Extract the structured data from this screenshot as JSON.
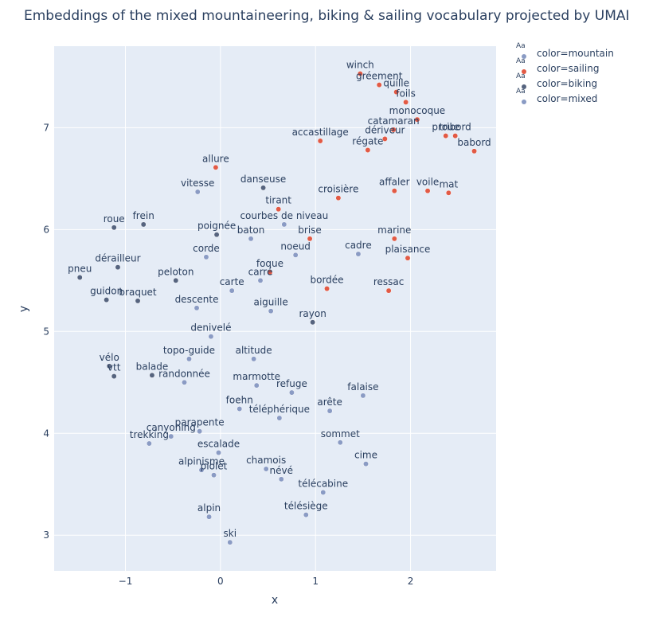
{
  "chart_data": {
    "type": "scatter",
    "title": "Embeddings of the mixed mountaineering, biking & sailing vocabulary projected by UMAI",
    "xlabel": "x",
    "ylabel": "y",
    "xlim": [
      -1.75,
      2.9
    ],
    "ylim": [
      2.65,
      7.8
    ],
    "xticks": [
      -1,
      0,
      1,
      2
    ],
    "xtick_labels": [
      "−1",
      "0",
      "1",
      "2"
    ],
    "yticks": [
      3,
      4,
      5,
      6,
      7
    ],
    "ytick_labels": [
      "3",
      "4",
      "5",
      "6",
      "7"
    ],
    "grid": true,
    "legend_position": "right",
    "series": [
      {
        "name": "color=mountain",
        "color": "#8a9bc4",
        "points": [
          {
            "label": "vitesse",
            "x": -0.24,
            "y": 6.37
          },
          {
            "label": "corde",
            "x": -0.15,
            "y": 5.73
          },
          {
            "label": "carte",
            "x": 0.12,
            "y": 5.4
          },
          {
            "label": "descente",
            "x": -0.25,
            "y": 5.23
          },
          {
            "label": "aiguille",
            "x": 0.53,
            "y": 5.2
          },
          {
            "label": "denivelé",
            "x": -0.1,
            "y": 4.95
          },
          {
            "label": "topo-guide",
            "x": -0.33,
            "y": 4.73
          },
          {
            "label": "altitude",
            "x": 0.35,
            "y": 4.73
          },
          {
            "label": "randonnée",
            "x": -0.38,
            "y": 4.5
          },
          {
            "label": "marmotte",
            "x": 0.38,
            "y": 4.47
          },
          {
            "label": "refuge",
            "x": 0.75,
            "y": 4.4
          },
          {
            "label": "falaise",
            "x": 1.5,
            "y": 4.37
          },
          {
            "label": "foehn",
            "x": 0.2,
            "y": 4.24
          },
          {
            "label": "téléphérique",
            "x": 0.62,
            "y": 4.15
          },
          {
            "label": "arête",
            "x": 1.15,
            "y": 4.22
          },
          {
            "label": "parapente",
            "x": -0.22,
            "y": 4.02
          },
          {
            "label": "canyoning",
            "x": -0.52,
            "y": 3.97
          },
          {
            "label": "trekking",
            "x": -0.75,
            "y": 3.9
          },
          {
            "label": "sommet",
            "x": 1.26,
            "y": 3.91
          },
          {
            "label": "escalade",
            "x": -0.02,
            "y": 3.81
          },
          {
            "label": "cime",
            "x": 1.53,
            "y": 3.7
          },
          {
            "label": "alpinisme",
            "x": -0.2,
            "y": 3.64
          },
          {
            "label": "chamois",
            "x": 0.48,
            "y": 3.65
          },
          {
            "label": "piolet",
            "x": -0.07,
            "y": 3.59
          },
          {
            "label": "névé",
            "x": 0.64,
            "y": 3.55
          },
          {
            "label": "télécabine",
            "x": 1.08,
            "y": 3.42
          },
          {
            "label": "télésiège",
            "x": 0.9,
            "y": 3.2
          },
          {
            "label": "alpin",
            "x": -0.12,
            "y": 3.18
          },
          {
            "label": "ski",
            "x": 0.1,
            "y": 2.93
          }
        ]
      },
      {
        "name": "color=sailing",
        "color": "#e25a45",
        "points": [
          {
            "label": "winch",
            "x": 1.47,
            "y": 7.53
          },
          {
            "label": "gréement",
            "x": 1.67,
            "y": 7.42
          },
          {
            "label": "quille",
            "x": 1.85,
            "y": 7.35
          },
          {
            "label": "foils",
            "x": 1.95,
            "y": 7.25
          },
          {
            "label": "monocoque",
            "x": 2.07,
            "y": 7.08
          },
          {
            "label": "catamaran",
            "x": 1.82,
            "y": 6.98
          },
          {
            "label": "proue",
            "x": 2.37,
            "y": 6.92
          },
          {
            "label": "tribord",
            "x": 2.47,
            "y": 6.92
          },
          {
            "label": "dériveur",
            "x": 1.73,
            "y": 6.89
          },
          {
            "label": "accastillage",
            "x": 1.05,
            "y": 6.87
          },
          {
            "label": "régate",
            "x": 1.55,
            "y": 6.78
          },
          {
            "label": "babord",
            "x": 2.67,
            "y": 6.77
          },
          {
            "label": "allure",
            "x": -0.05,
            "y": 6.61
          },
          {
            "label": "affaler",
            "x": 1.83,
            "y": 6.38
          },
          {
            "label": "voile",
            "x": 2.18,
            "y": 6.38
          },
          {
            "label": "mat",
            "x": 2.4,
            "y": 6.36
          },
          {
            "label": "croisière",
            "x": 1.24,
            "y": 6.31
          },
          {
            "label": "tirant",
            "x": 0.61,
            "y": 6.2
          },
          {
            "label": "brise",
            "x": 0.94,
            "y": 5.91
          },
          {
            "label": "marine",
            "x": 1.83,
            "y": 5.91
          },
          {
            "label": "plaisance",
            "x": 1.97,
            "y": 5.72
          },
          {
            "label": "foque",
            "x": 0.52,
            "y": 5.58
          },
          {
            "label": "bordée",
            "x": 1.12,
            "y": 5.42
          },
          {
            "label": "ressac",
            "x": 1.77,
            "y": 5.4
          }
        ]
      },
      {
        "name": "color=biking",
        "color": "#56647f",
        "points": [
          {
            "label": "roue",
            "x": -1.12,
            "y": 6.02
          },
          {
            "label": "frein",
            "x": -0.81,
            "y": 6.05
          },
          {
            "label": "danseuse",
            "x": 0.45,
            "y": 6.41
          },
          {
            "label": "poignée",
            "x": -0.04,
            "y": 5.95
          },
          {
            "label": "dérailleur",
            "x": -1.08,
            "y": 5.63
          },
          {
            "label": "pneu",
            "x": -1.48,
            "y": 5.53
          },
          {
            "label": "peloton",
            "x": -0.47,
            "y": 5.5
          },
          {
            "label": "guidon",
            "x": -1.2,
            "y": 5.31
          },
          {
            "label": "braquet",
            "x": -0.87,
            "y": 5.3
          },
          {
            "label": "rayon",
            "x": 0.97,
            "y": 5.09
          },
          {
            "label": "vélo",
            "x": -1.17,
            "y": 4.66
          },
          {
            "label": "vtt",
            "x": -1.12,
            "y": 4.56
          },
          {
            "label": "balade",
            "x": -0.72,
            "y": 4.57
          }
        ]
      },
      {
        "name": "color=mixed",
        "color": "#8a9bc4",
        "points": [
          {
            "label": "courbes de niveau",
            "x": 0.67,
            "y": 6.05
          },
          {
            "label": "baton",
            "x": 0.32,
            "y": 5.91
          },
          {
            "label": "noeud",
            "x": 0.79,
            "y": 5.75
          },
          {
            "label": "cadre",
            "x": 1.45,
            "y": 5.76
          },
          {
            "label": "carré",
            "x": 0.42,
            "y": 5.5
          }
        ]
      }
    ]
  },
  "legend": {
    "aa_text": "Aa",
    "items": [
      {
        "label": "color=mountain",
        "color": "#8a9bc4"
      },
      {
        "label": "color=sailing",
        "color": "#e25a45"
      },
      {
        "label": "color=biking",
        "color": "#56647f"
      },
      {
        "label": "color=mixed",
        "color": "#8a9bc4"
      }
    ]
  }
}
